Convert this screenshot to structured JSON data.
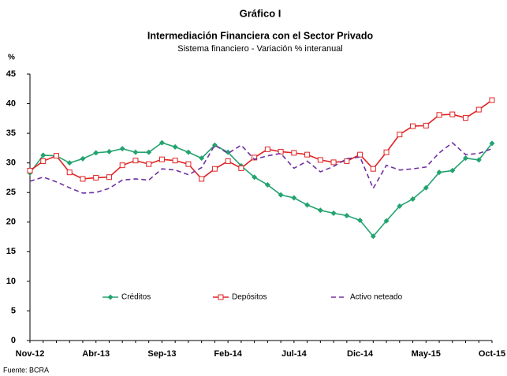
{
  "chart_data": {
    "type": "line",
    "title": "Gráfico I",
    "subtitle": "Intermediación Financiera con el Sector Privado",
    "subtitle2": "Sistema financiero - Variación % interanual",
    "y_label": "%",
    "source": "Fuente: BCRA",
    "categories": [
      "Nov-12",
      null,
      null,
      null,
      null,
      "Abr-13",
      null,
      null,
      null,
      null,
      "Sep-13",
      null,
      null,
      null,
      null,
      "Feb-14",
      null,
      null,
      null,
      null,
      "Jul-14",
      null,
      null,
      null,
      null,
      "Dic-14",
      null,
      null,
      null,
      null,
      "May-15",
      null,
      null,
      null,
      null,
      "Oct-15"
    ],
    "series": [
      {
        "name": "Créditos",
        "color": "#23a36f",
        "marker": "diamond",
        "dash": false,
        "values": [
          28.3,
          31.3,
          31.2,
          30.0,
          30.7,
          31.7,
          31.9,
          32.4,
          31.8,
          31.8,
          33.4,
          32.7,
          31.8,
          30.8,
          33.0,
          31.8,
          29.5,
          27.6,
          26.3,
          24.6,
          24.1,
          22.9,
          22.0,
          21.5,
          21.1,
          20.3,
          17.6,
          20.2,
          22.7,
          23.9,
          25.8,
          28.4,
          28.7,
          30.8,
          30.5,
          33.3
        ]
      },
      {
        "name": "Depósitos",
        "color": "#e02424",
        "marker": "square",
        "dash": false,
        "values": [
          28.7,
          30.3,
          31.2,
          28.4,
          27.3,
          27.5,
          27.6,
          29.6,
          30.4,
          29.8,
          30.6,
          30.4,
          29.8,
          27.3,
          29.0,
          30.3,
          29.1,
          30.9,
          32.3,
          31.9,
          31.7,
          31.4,
          30.5,
          30.1,
          30.3,
          31.4,
          29.0,
          31.8,
          34.8,
          36.2,
          36.3,
          38.1,
          38.2,
          37.6,
          39.0,
          40.6
        ]
      },
      {
        "name": "Activo neteado",
        "color": "#7030a0",
        "marker": "none",
        "dash": true,
        "values": [
          26.9,
          27.6,
          26.8,
          25.8,
          24.9,
          25.0,
          25.7,
          27.1,
          27.3,
          27.1,
          29.0,
          28.8,
          28.0,
          29.2,
          33.0,
          31.6,
          33.0,
          30.6,
          31.2,
          31.6,
          29.1,
          30.3,
          28.5,
          29.4,
          30.7,
          31.0,
          25.7,
          29.6,
          28.8,
          29.0,
          29.3,
          31.7,
          33.4,
          31.4,
          31.6,
          32.4
        ]
      }
    ],
    "ylim": [
      0,
      45
    ],
    "yticks": [
      0,
      5,
      10,
      15,
      20,
      25,
      30,
      35,
      40,
      45
    ],
    "grid": false
  }
}
